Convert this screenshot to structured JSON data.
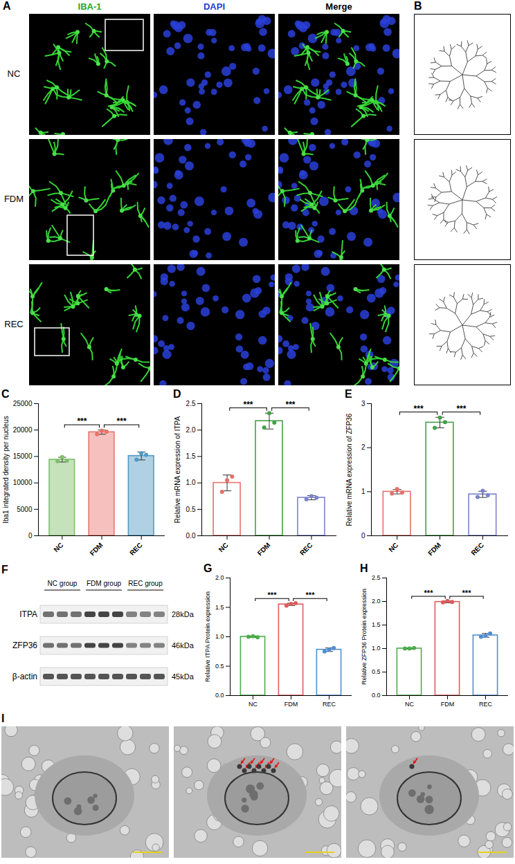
{
  "panels": {
    "A": {
      "letter": "A",
      "columns": [
        "IBA-1",
        "DAPI",
        "Merge"
      ],
      "rows": [
        "NC",
        "FDM",
        "REC"
      ]
    },
    "B": {
      "letter": "B"
    },
    "F": {
      "letter": "F",
      "groups": [
        "NC group",
        "FDM group",
        "REC group"
      ],
      "bands": [
        {
          "name": "ITPA",
          "size": "28kDa"
        },
        {
          "name": "ZFP36",
          "size": "46kDa"
        },
        {
          "name": "β-actin",
          "size": "45kDa"
        }
      ]
    },
    "I": {
      "letter": "I"
    }
  },
  "chart_data": [
    {
      "letter": "C",
      "type": "bar",
      "ylabel": "Iba1 integrated density per nucleus",
      "categories": [
        "NC",
        "FDM",
        "REC"
      ],
      "values": [
        14400,
        19600,
        15100
      ],
      "errors": [
        450,
        400,
        750
      ],
      "points": [
        [
          14100,
          14900,
          14200
        ],
        [
          19200,
          19900,
          19700
        ],
        [
          14400,
          15600,
          15300
        ]
      ],
      "colors": [
        "#7fbf6a",
        "#e8736c",
        "#4f9ac4"
      ],
      "ylim": [
        0,
        25000
      ],
      "yticks": [
        0,
        5000,
        10000,
        15000,
        20000,
        25000
      ],
      "comparisons": [
        {
          "pair": [
            "NC",
            "FDM"
          ],
          "label": "***"
        },
        {
          "pair": [
            "FDM",
            "REC"
          ],
          "label": "***"
        }
      ]
    },
    {
      "letter": "D",
      "type": "bar",
      "ylabel": "Relative mRNA expression of ITPA",
      "categories": [
        "NC",
        "FDM",
        "REC"
      ],
      "values": [
        1.0,
        2.17,
        0.72
      ],
      "errors": [
        0.15,
        0.15,
        0.04
      ],
      "points": [
        [
          0.83,
          1.05,
          1.12
        ],
        [
          2.05,
          2.32,
          2.14
        ],
        [
          0.69,
          0.75,
          0.72
        ]
      ],
      "colors": [
        "#e5706a",
        "#43a047",
        "#7b83c9"
      ],
      "ylim": [
        0,
        2.5
      ],
      "yticks": [
        {
          "value": 0,
          "label": "0.0"
        },
        0.5,
        {
          "value": 1,
          "label": "1.0"
        },
        1.5,
        {
          "value": 2,
          "label": "2.0"
        },
        2.5
      ],
      "comparisons": [
        {
          "pair": [
            "NC",
            "FDM"
          ],
          "label": "***"
        },
        {
          "pair": [
            "FDM",
            "REC"
          ],
          "label": "***"
        }
      ]
    },
    {
      "letter": "E",
      "type": "bar",
      "ylabel": "Relative mRNA expression of ZFP36",
      "categories": [
        "NC",
        "FDM",
        "REC"
      ],
      "values": [
        1.0,
        2.57,
        0.94
      ],
      "errors": [
        0.05,
        0.12,
        0.07
      ],
      "points": [
        [
          0.96,
          1.06,
          0.98
        ],
        [
          2.45,
          2.68,
          2.58
        ],
        [
          0.88,
          1.02,
          0.92
        ]
      ],
      "colors": [
        "#e5706a",
        "#43a047",
        "#7b83c9"
      ],
      "ylim": [
        0,
        3
      ],
      "yticks": [
        0,
        1,
        2,
        3
      ],
      "comparisons": [
        {
          "pair": [
            "NC",
            "FDM"
          ],
          "label": "***"
        },
        {
          "pair": [
            "FDM",
            "REC"
          ],
          "label": "***"
        }
      ]
    },
    {
      "letter": "G",
      "type": "bar",
      "ylabel": "Relative ITPA Protein expression",
      "categories": [
        "NC",
        "FDM",
        "REC"
      ],
      "values": [
        1.0,
        1.55,
        0.78
      ],
      "errors": [
        0.01,
        0.02,
        0.03
      ],
      "points": [
        [
          1.0,
          1.01,
          0.99
        ],
        [
          1.53,
          1.56,
          1.57
        ],
        [
          0.75,
          0.78,
          0.81
        ]
      ],
      "colors": [
        "#4cae4c",
        "#e05a5a",
        "#4f8fd0"
      ],
      "ylim": [
        0,
        2
      ],
      "yticks": [
        {
          "value": 0,
          "label": "0.0"
        },
        0.5,
        {
          "value": 1,
          "label": "1.0"
        },
        1.5,
        {
          "value": 2,
          "label": "2.0"
        }
      ],
      "comparisons": [
        {
          "pair": [
            "NC",
            "FDM"
          ],
          "label": "***"
        },
        {
          "pair": [
            "FDM",
            "REC"
          ],
          "label": "***"
        }
      ]
    },
    {
      "letter": "H",
      "type": "bar",
      "ylabel": "Relative ZFP36 Protein expression",
      "categories": [
        "NC",
        "FDM",
        "REC"
      ],
      "values": [
        1.0,
        1.99,
        1.28
      ],
      "errors": [
        0.01,
        0.02,
        0.04
      ],
      "points": [
        [
          1.0,
          1.0,
          1.01
        ],
        [
          1.98,
          2.01,
          1.99
        ],
        [
          1.25,
          1.27,
          1.32
        ]
      ],
      "colors": [
        "#4cae4c",
        "#e05a5a",
        "#4f8fd0"
      ],
      "ylim": [
        0,
        2.5
      ],
      "yticks": [
        {
          "value": 0,
          "label": "0.0"
        },
        0.5,
        {
          "value": 1,
          "label": "1.0"
        },
        1.5,
        {
          "value": 2,
          "label": "2.0"
        },
        2.5
      ],
      "comparisons": [
        {
          "pair": [
            "NC",
            "FDM"
          ],
          "label": "***"
        },
        {
          "pair": [
            "FDM",
            "REC"
          ],
          "label": "***"
        }
      ]
    }
  ]
}
